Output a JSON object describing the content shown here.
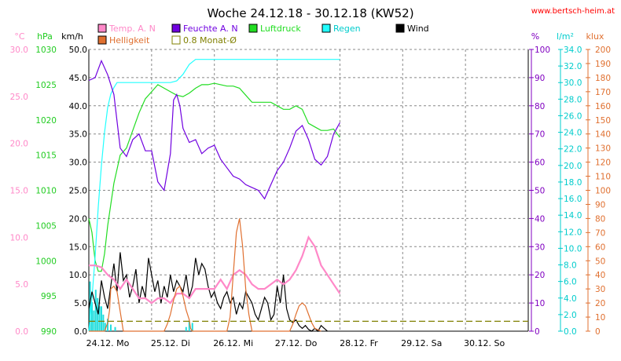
{
  "title": "Woche 24.12.18 - 30.12.18 (KW52)",
  "source": "www.bertsch-heim.at",
  "chart_data": {
    "type": "line",
    "title": "Woche 24.12.18 - 30.12.18 (KW52)",
    "x_labels": [
      "24.12. Mo",
      "25.12. Di",
      "26.12. Mi",
      "27.12. Do",
      "28.12. Fr",
      "29.12. Sa",
      "30.12. So"
    ],
    "x_unit": "days",
    "xlim": [
      0,
      7
    ],
    "grid": true,
    "legend_position": "top",
    "legend": [
      {
        "label": "Temp. A. N",
        "color": "#ff88c8",
        "marker": "filled"
      },
      {
        "label": "Feuchte A. N",
        "color": "#7000e0",
        "marker": "filled"
      },
      {
        "label": "Luftdruck",
        "color": "#22dd22",
        "marker": "filled"
      },
      {
        "label": "Regen",
        "color": "#22ffff",
        "marker": "filled"
      },
      {
        "label": "Wind",
        "color": "#000000",
        "marker": "filled"
      },
      {
        "label": "Helligkeit",
        "color": "#e07030",
        "marker": "filled"
      },
      {
        "label": "0.8 Monat-Ø",
        "color": "#808000",
        "marker": "outline"
      }
    ],
    "axes": [
      {
        "id": "temp",
        "unit": "°C",
        "side": "left",
        "color": "#ff88c8",
        "min": 0,
        "max": 30,
        "ticks": [
          "0.0",
          "5.0",
          "10.0",
          "15.0",
          "20.0",
          "25.0",
          "30.0"
        ]
      },
      {
        "id": "pressure",
        "unit": "hPa",
        "side": "left",
        "color": "#22cc22",
        "min": 990,
        "max": 1030,
        "ticks": [
          "990",
          "995",
          "1000",
          "1005",
          "1010",
          "1015",
          "1020",
          "1025",
          "1030"
        ]
      },
      {
        "id": "wind",
        "unit": "km/h",
        "side": "left",
        "color": "#000000",
        "min": 0,
        "max": 50,
        "ticks": [
          "0.0",
          "5.0",
          "10.0",
          "15.0",
          "20.0",
          "25.0",
          "30.0",
          "35.0",
          "40.0",
          "45.0",
          "50.0"
        ]
      },
      {
        "id": "humidity",
        "unit": "%",
        "side": "right",
        "color": "#8000c0",
        "min": 0,
        "max": 100,
        "ticks": [
          "0",
          "10",
          "20",
          "30",
          "40",
          "50",
          "60",
          "70",
          "80",
          "90",
          "100"
        ]
      },
      {
        "id": "rain",
        "unit": "l/m²",
        "side": "right",
        "color": "#00cccc",
        "min": 0,
        "max": 34,
        "ticks": [
          "0.0",
          "2.0",
          "4.0",
          "6.0",
          "8.0",
          "10.0",
          "12.0",
          "14.0",
          "16.0",
          "18.0",
          "20.0",
          "22.0",
          "24.0",
          "26.0",
          "28.0",
          "30.0",
          "32.0",
          "34.0"
        ]
      },
      {
        "id": "light",
        "unit": "klux",
        "side": "right",
        "color": "#e07030",
        "min": 0,
        "max": 200,
        "ticks": [
          "0",
          "10",
          "20",
          "30",
          "40",
          "50",
          "60",
          "70",
          "80",
          "90",
          "100",
          "110",
          "120",
          "130",
          "140",
          "150",
          "160",
          "170",
          "180",
          "190",
          "200"
        ]
      }
    ],
    "series": [
      {
        "name": "Luftdruck",
        "axis": "pressure",
        "color": "#22dd22",
        "x": [
          0,
          0.05,
          0.1,
          0.15,
          0.2,
          0.25,
          0.3,
          0.4,
          0.5,
          0.6,
          0.7,
          0.8,
          0.9,
          1.0,
          1.1,
          1.2,
          1.3,
          1.4,
          1.5,
          1.6,
          1.7,
          1.8,
          1.9,
          2.0,
          2.1,
          2.2,
          2.3,
          2.4,
          2.5,
          2.6,
          2.7,
          2.8,
          2.9,
          3.0,
          3.1,
          3.2,
          3.3,
          3.4,
          3.5,
          3.6,
          3.7,
          3.8,
          3.9,
          4.0
        ],
        "y": [
          1006,
          1004,
          1000,
          998.5,
          998.5,
          1001,
          1005,
          1011,
          1015,
          1016,
          1018.5,
          1021,
          1023,
          1024,
          1025,
          1024.5,
          1024,
          1023.5,
          1023.3,
          1023.8,
          1024.5,
          1025,
          1025,
          1025.2,
          1025,
          1024.8,
          1024.8,
          1024.5,
          1023.5,
          1022.5,
          1022.5,
          1022.5,
          1022.5,
          1022,
          1021.5,
          1021.5,
          1022,
          1021.5,
          1019.5,
          1019,
          1018.5,
          1018.5,
          1018.7,
          1017.5
        ]
      },
      {
        "name": "Regen",
        "axis": "rain",
        "color": "#22ffff",
        "x": [
          0,
          0.05,
          0.1,
          0.15,
          0.2,
          0.25,
          0.3,
          0.35,
          0.4,
          0.45,
          0.5,
          0.6,
          0.8,
          1.0,
          1.1,
          1.2,
          1.3,
          1.4,
          1.45,
          1.5,
          1.6,
          1.7,
          4.0
        ],
        "y": [
          0,
          4,
          9,
          15,
          20,
          24,
          27,
          28.6,
          29.4,
          30,
          30,
          30,
          30,
          30,
          30,
          30,
          30,
          30.2,
          30.6,
          31,
          32.2,
          32.8,
          32.8
        ]
      },
      {
        "name": "Feuchte A. N",
        "axis": "humidity",
        "color": "#7000e0",
        "x": [
          0,
          0.1,
          0.2,
          0.3,
          0.4,
          0.5,
          0.6,
          0.7,
          0.8,
          0.9,
          1.0,
          1.1,
          1.2,
          1.3,
          1.35,
          1.4,
          1.45,
          1.5,
          1.6,
          1.7,
          1.8,
          1.9,
          2.0,
          2.1,
          2.2,
          2.3,
          2.4,
          2.5,
          2.6,
          2.7,
          2.8,
          2.9,
          3.0,
          3.1,
          3.2,
          3.3,
          3.4,
          3.5,
          3.6,
          3.7,
          3.8,
          3.9,
          4.0
        ],
        "y": [
          89,
          90,
          96,
          91,
          84,
          65,
          62,
          68,
          70,
          64,
          64,
          53,
          50,
          63,
          82,
          84,
          80,
          72,
          67,
          68,
          63,
          65,
          66,
          61,
          58,
          55,
          54,
          52,
          51,
          50,
          47,
          52,
          57,
          60,
          65,
          71,
          73,
          68,
          61,
          59,
          62,
          70,
          74
        ]
      },
      {
        "name": "Wind",
        "axis": "wind",
        "color": "#000000",
        "x": [
          0,
          0.05,
          0.1,
          0.15,
          0.2,
          0.25,
          0.3,
          0.35,
          0.4,
          0.45,
          0.5,
          0.55,
          0.6,
          0.65,
          0.7,
          0.75,
          0.8,
          0.85,
          0.9,
          0.95,
          1.0,
          1.05,
          1.1,
          1.15,
          1.2,
          1.25,
          1.3,
          1.35,
          1.4,
          1.45,
          1.5,
          1.55,
          1.6,
          1.65,
          1.7,
          1.75,
          1.8,
          1.85,
          1.9,
          1.95,
          2.0,
          2.05,
          2.1,
          2.15,
          2.2,
          2.25,
          2.3,
          2.35,
          2.4,
          2.45,
          2.5,
          2.55,
          2.6,
          2.65,
          2.7,
          2.75,
          2.8,
          2.85,
          2.9,
          2.95,
          3.0,
          3.05,
          3.1,
          3.15,
          3.2,
          3.25,
          3.3,
          3.35,
          3.4,
          3.45,
          3.5,
          3.55,
          3.6,
          3.65,
          3.7,
          3.75,
          3.8
        ],
        "y": [
          4,
          7,
          5,
          3,
          9,
          6,
          4,
          8,
          12,
          7,
          14,
          9,
          10,
          6,
          8,
          11,
          5,
          8,
          6,
          13,
          10,
          7,
          9,
          5,
          8,
          6,
          10,
          7,
          9,
          8,
          7,
          10,
          6,
          8,
          13,
          10,
          12,
          11,
          8,
          6,
          7,
          5,
          4,
          6,
          7,
          5,
          6,
          3,
          5,
          4,
          7,
          6,
          5,
          3,
          2,
          4,
          6,
          5,
          2,
          3,
          8,
          5,
          10,
          4,
          2,
          1.5,
          2,
          1,
          0.5,
          1,
          0.3,
          0,
          0.5,
          0,
          1,
          0.5,
          0
        ]
      },
      {
        "name": "Temp. A. N",
        "axis": "temp",
        "color": "#ff88c8",
        "x": [
          0,
          0.1,
          0.2,
          0.3,
          0.4,
          0.5,
          0.6,
          0.7,
          0.8,
          0.9,
          1.0,
          1.1,
          1.2,
          1.3,
          1.4,
          1.5,
          1.6,
          1.7,
          1.8,
          1.9,
          2.0,
          2.1,
          2.2,
          2.3,
          2.4,
          2.5,
          2.6,
          2.7,
          2.8,
          2.9,
          3.0,
          3.1,
          3.2,
          3.3,
          3.4,
          3.5,
          3.6,
          3.7,
          3.8,
          3.9,
          4.0
        ],
        "y": [
          7,
          7,
          6.8,
          6,
          5.5,
          4.5,
          5.5,
          4.5,
          3.5,
          3.5,
          3,
          3.5,
          3.5,
          3,
          4,
          4,
          3.5,
          4.5,
          4.5,
          4.5,
          4.5,
          5.5,
          4.5,
          6,
          6.5,
          6,
          5,
          4.5,
          4.5,
          5,
          5.5,
          5,
          5.5,
          6.5,
          8,
          10,
          9,
          7,
          6,
          5,
          4
        ]
      },
      {
        "name": "Helligkeit",
        "axis": "light",
        "color": "#e07030",
        "x": [
          0,
          0.25,
          0.3,
          0.33,
          0.35,
          0.4,
          0.45,
          0.55,
          1.2,
          1.25,
          1.3,
          1.35,
          1.4,
          1.45,
          1.5,
          1.55,
          1.6,
          1.62,
          1.65,
          1.7,
          1.8,
          2.2,
          2.25,
          2.3,
          2.35,
          2.4,
          2.45,
          2.5,
          2.55,
          2.6,
          3.2,
          3.25,
          3.3,
          3.35,
          3.4,
          3.45,
          3.5,
          3.55,
          3.6,
          3.7
        ],
        "y": [
          0,
          0,
          6,
          15,
          30,
          32,
          28,
          0,
          0,
          5,
          12,
          22,
          30,
          32,
          25,
          15,
          8,
          2,
          0,
          0,
          0,
          0,
          10,
          40,
          70,
          80,
          60,
          30,
          12,
          0,
          0,
          5,
          12,
          18,
          20,
          18,
          12,
          6,
          2,
          0
        ]
      },
      {
        "name": "0.8 Monat-Ø",
        "axis": "light",
        "color": "#808000",
        "dashed": true,
        "x": [
          0,
          7
        ],
        "y": [
          7,
          7
        ]
      }
    ],
    "bars": {
      "name": "Regen",
      "axis": "rain",
      "color": "#22dddd",
      "x": [
        0.02,
        0.05,
        0.08,
        0.11,
        0.14,
        0.17,
        0.2,
        0.23,
        0.26,
        0.3,
        0.35,
        0.42,
        1.55,
        1.6,
        1.65
      ],
      "y": [
        6,
        3.5,
        2.5,
        5,
        4,
        3,
        3,
        2,
        1,
        1.5,
        0.8,
        0.5,
        0.5,
        1.2,
        1
      ]
    }
  }
}
